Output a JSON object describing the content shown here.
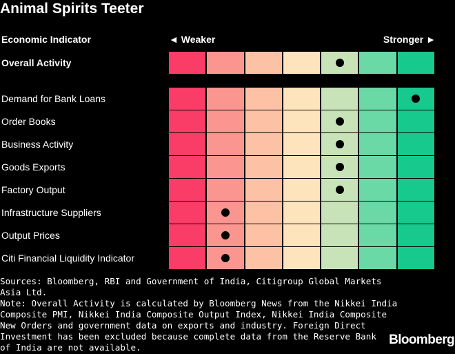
{
  "title": "Animal Spirits Teeter",
  "header": {
    "indicator_label": "Economic Indicator",
    "weaker_label": "◄ Weaker",
    "stronger_label": "Stronger ►"
  },
  "colors": {
    "scale": [
      "#f93d66",
      "#fb958f",
      "#fdc1a6",
      "#fde4bd",
      "#c9e3b8",
      "#6bd9a6",
      "#18c98d"
    ],
    "background": "#000000",
    "marker": "#000000"
  },
  "chart_data": {
    "type": "table",
    "title": "Animal Spirits Teeter",
    "scale_levels": 7,
    "scale_direction": "1 = Weaker, 7 = Stronger",
    "overall": {
      "label": "Overall Activity",
      "level": 5
    },
    "indicators": [
      {
        "label": "Demand for Bank Loans",
        "level": 7
      },
      {
        "label": "Order Books",
        "level": 5
      },
      {
        "label": "Business Activity",
        "level": 5
      },
      {
        "label": "Goods Exports",
        "level": 5
      },
      {
        "label": "Factory Output",
        "level": 5
      },
      {
        "label": "Infrastructure Suppliers",
        "level": 2
      },
      {
        "label": "Output Prices",
        "level": 2
      },
      {
        "label": "Citi Financial Liquidity Indicator",
        "level": 2
      }
    ]
  },
  "notes": {
    "lines": [
      "Sources: Bloomberg, RBI and Government of India, Citigroup Global Markets",
      "Asia Ltd.",
      "Note: Overall Activity is calculated by Bloomberg News from the Nikkei India",
      "Composite PMI, Nikkei India Composite Output Index, Nikkei India Composite",
      "New Orders and government data on exports and industry. Foreign Direct",
      "Investment has been excluded because complete data from the Reserve Bank",
      "of India are not available."
    ]
  },
  "logo": "Bloomberg"
}
